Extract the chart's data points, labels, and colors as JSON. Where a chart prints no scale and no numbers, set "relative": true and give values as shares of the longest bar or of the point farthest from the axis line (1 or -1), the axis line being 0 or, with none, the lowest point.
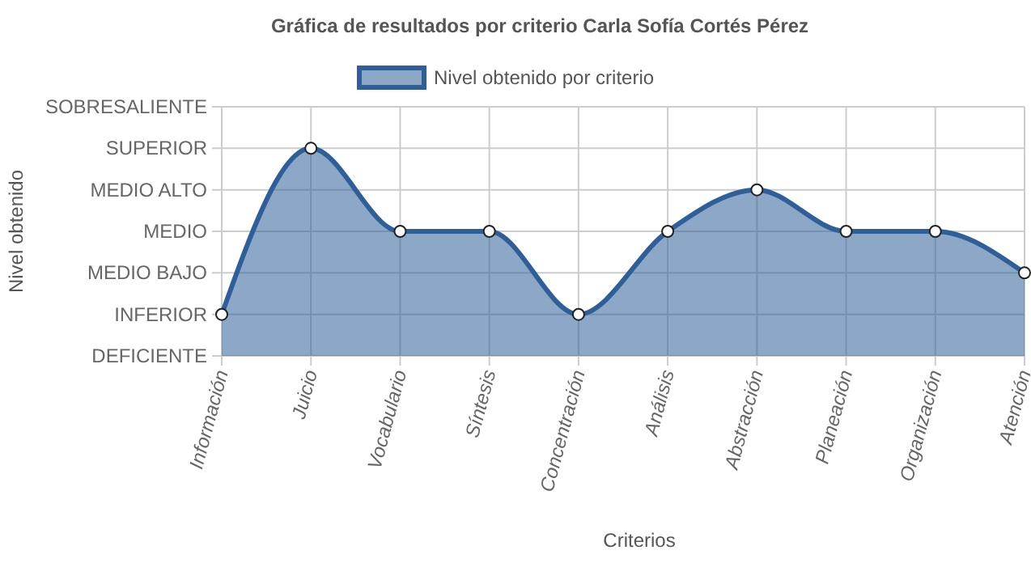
{
  "chart_data": {
    "type": "area",
    "title": "Gráfica de resultados por criterio Carla Sofía Cortés Pérez",
    "xlabel": "Criterios",
    "annotations": [
      "Nivel obtenido"
    ],
    "categories": [
      "Información",
      "Juicio",
      "Vocabulario",
      "Síntesis",
      "Concentración",
      "Análisis",
      "Abstracción",
      "Planeación",
      "Organización",
      "Atención"
    ],
    "series": [
      {
        "name": "Nivel obtenido por criterio",
        "color": "#2f5f98",
        "values": [
          0.2,
          1,
          0.6,
          0.6,
          0.2,
          0.6,
          0.8,
          0.6,
          0.6,
          0.4
        ]
      }
    ],
    "relative": true,
    "y_categories": [
      "SOBRESALIENTE",
      "SUPERIOR",
      "MEDIO ALTO",
      "MEDIO",
      "MEDIO BAJO",
      "INFERIOR",
      "DEFICIENTE"
    ],
    "grid": true,
    "legend": "top",
    "marker": "circle",
    "line_style": "solid"
  }
}
